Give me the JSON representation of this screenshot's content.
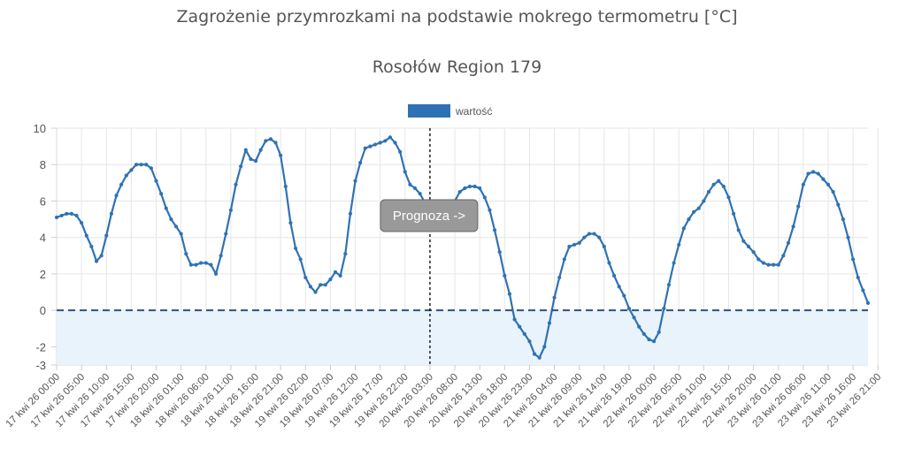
{
  "chart_data": {
    "type": "line",
    "title": "Zagrożenie przymrozkami na podstawie mokrego termometru [°C]",
    "subtitle": "Rosołów Region 179",
    "ylim": [
      -3,
      10
    ],
    "yticks": [
      -3,
      -2,
      0,
      2,
      4,
      6,
      8,
      10
    ],
    "grid": true,
    "legend_position": "top-center",
    "series": [
      {
        "name": "wartość",
        "color": "#2f72b4",
        "start_hour": "17 kwi 26 00:00",
        "step_hours": 1,
        "values": [
          5.1,
          5.2,
          5.3,
          5.3,
          5.2,
          4.8,
          4.1,
          3.5,
          2.7,
          3.0,
          4.1,
          5.3,
          6.3,
          6.9,
          7.4,
          7.7,
          8.0,
          8.0,
          8.0,
          7.8,
          7.1,
          6.4,
          5.6,
          5.0,
          4.6,
          4.2,
          3.1,
          2.5,
          2.5,
          2.6,
          2.6,
          2.5,
          2.0,
          3.0,
          4.2,
          5.5,
          6.9,
          7.9,
          8.8,
          8.3,
          8.2,
          8.8,
          9.3,
          9.4,
          9.2,
          8.5,
          6.8,
          4.8,
          3.4,
          2.8,
          1.8,
          1.3,
          1.0,
          1.4,
          1.4,
          1.7,
          2.1,
          1.9,
          3.1,
          5.3,
          7.1,
          8.1,
          8.9,
          9.0,
          9.1,
          9.2,
          9.3,
          9.5,
          9.2,
          8.7,
          7.6,
          6.9,
          6.7,
          6.4,
          5.9,
          5.3,
          5.0,
          4.6,
          4.9,
          5.4,
          6.0,
          6.5,
          6.7,
          6.8,
          6.8,
          6.7,
          6.2,
          5.5,
          4.4,
          3.2,
          1.9,
          0.9,
          -0.5,
          -0.9,
          -1.3,
          -1.7,
          -2.4,
          -2.6,
          -2.0,
          -0.7,
          0.7,
          1.8,
          2.8,
          3.5,
          3.6,
          3.7,
          4.0,
          4.2,
          4.2,
          4.0,
          3.5,
          2.6,
          1.9,
          1.3,
          0.8,
          0.1,
          -0.4,
          -0.9,
          -1.3,
          -1.6,
          -1.7,
          -1.2,
          0.1,
          1.4,
          2.6,
          3.6,
          4.5,
          5.0,
          5.4,
          5.6,
          6.0,
          6.5,
          6.9,
          7.1,
          6.8,
          6.2,
          5.3,
          4.4,
          3.8,
          3.5,
          3.2,
          2.8,
          2.6,
          2.5,
          2.5,
          2.5,
          3.0,
          3.7,
          4.6,
          5.7,
          6.9,
          7.5,
          7.6,
          7.5,
          7.2,
          6.9,
          6.5,
          5.8,
          5.0,
          4.0,
          2.8,
          1.8,
          1.1,
          0.4
        ]
      }
    ],
    "xticks": [
      "17 kwi 26 00:00",
      "17 kwi 26 05:00",
      "17 kwi 26 10:00",
      "17 kwi 26 15:00",
      "17 kwi 26 20:00",
      "18 kwi 26 01:00",
      "18 kwi 26 06:00",
      "18 kwi 26 11:00",
      "18 kwi 26 16:00",
      "18 kwi 26 21:00",
      "19 kwi 26 02:00",
      "19 kwi 26 07:00",
      "19 kwi 26 12:00",
      "19 kwi 26 17:00",
      "19 kwi 26 22:00",
      "20 kwi 26 03:00",
      "20 kwi 26 08:00",
      "20 kwi 26 13:00",
      "20 kwi 26 18:00",
      "20 kwi 26 23:00",
      "21 kwi 26 04:00",
      "21 kwi 26 09:00",
      "21 kwi 26 14:00",
      "21 kwi 26 19:00",
      "22 kwi 26 00:00",
      "22 kwi 26 05:00",
      "22 kwi 26 10:00",
      "22 kwi 26 15:00",
      "22 kwi 26 20:00",
      "23 kwi 26 01:00",
      "23 kwi 26 06:00",
      "23 kwi 26 11:00",
      "23 kwi 26 16:00",
      "23 kwi 26 21:00"
    ],
    "annotations": {
      "zero_line": 0,
      "frost_zone": [
        -3,
        0
      ],
      "forecast_start": "20 kwi 26 03:00",
      "forecast_label": "Prognoza ->"
    },
    "colors": {
      "line": "#2f72b4",
      "zero_line": "#2f4f8f",
      "frost_zone": "#e8f3fc",
      "label_box": "#999999"
    }
  }
}
